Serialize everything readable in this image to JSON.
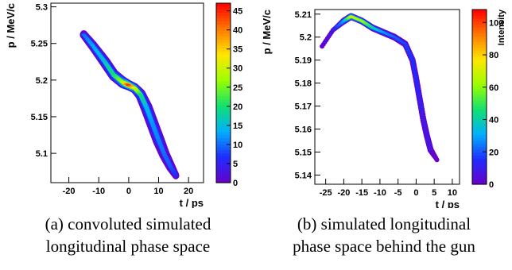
{
  "captions": {
    "a": [
      "(a) convoluted simulated",
      "longitudinal phase space"
    ],
    "b": [
      "(b) simulated longitudinal",
      "phase space behind the gun"
    ]
  },
  "chart_data": [
    {
      "type": "heatmap",
      "xlabel": "t / ps",
      "ylabel": "p / MeV/c",
      "zlabel": "",
      "xlim": [
        -26,
        25
      ],
      "ylim": [
        5.06,
        5.305
      ],
      "zlim": [
        0,
        47
      ],
      "x_ticks": [
        -20,
        -10,
        0,
        10,
        20
      ],
      "y_ticks": [
        5.1,
        5.15,
        5.2,
        5.25,
        5.3
      ],
      "z_ticks": [
        0,
        5,
        10,
        15,
        20,
        25,
        30,
        35,
        40,
        45
      ],
      "colorscale": [
        "#6a00c8",
        "#1f2bff",
        "#00b0ff",
        "#10e070",
        "#9aff00",
        "#ffe600",
        "#ff7a00",
        "#ff0000"
      ],
      "ridge": [
        {
          "t": -15,
          "p": 5.262,
          "w": 0.006,
          "i": 10
        },
        {
          "t": -12,
          "p": 5.247,
          "w": 0.007,
          "i": 13
        },
        {
          "t": -8,
          "p": 5.225,
          "w": 0.008,
          "i": 16
        },
        {
          "t": -5,
          "p": 5.207,
          "w": 0.008,
          "i": 20
        },
        {
          "t": -2,
          "p": 5.197,
          "w": 0.008,
          "i": 28
        },
        {
          "t": 0,
          "p": 5.193,
          "w": 0.007,
          "i": 45
        },
        {
          "t": 2,
          "p": 5.189,
          "w": 0.007,
          "i": 32
        },
        {
          "t": 4,
          "p": 5.18,
          "w": 0.008,
          "i": 20
        },
        {
          "t": 6,
          "p": 5.162,
          "w": 0.009,
          "i": 14
        },
        {
          "t": 8,
          "p": 5.14,
          "w": 0.009,
          "i": 12
        },
        {
          "t": 10,
          "p": 5.118,
          "w": 0.009,
          "i": 11
        },
        {
          "t": 12,
          "p": 5.098,
          "w": 0.008,
          "i": 10
        },
        {
          "t": 14,
          "p": 5.082,
          "w": 0.007,
          "i": 9
        },
        {
          "t": 16,
          "p": 5.068,
          "w": 0.005,
          "i": 6
        }
      ]
    },
    {
      "type": "heatmap",
      "xlabel": "t / ps",
      "ylabel": "p / MeV/c",
      "zlabel": "Intensity",
      "xlim": [
        -28,
        12
      ],
      "ylim": [
        5.136,
        5.212
      ],
      "zlim": [
        0,
        108
      ],
      "x_ticks": [
        -25,
        -20,
        -15,
        -10,
        -5,
        0,
        5,
        10
      ],
      "y_ticks": [
        5.14,
        5.15,
        5.16,
        5.17,
        5.18,
        5.19,
        5.2,
        5.21
      ],
      "z_ticks": [
        0,
        20,
        40,
        60,
        80,
        100
      ],
      "colorscale": [
        "#6a00c8",
        "#1f2bff",
        "#00b0ff",
        "#10e070",
        "#9aff00",
        "#ffe600",
        "#ff7a00",
        "#ff0000"
      ],
      "ridge": [
        {
          "t": -26,
          "p": 5.196,
          "w": 0.001,
          "i": 8
        },
        {
          "t": -23,
          "p": 5.203,
          "w": 0.001,
          "i": 12
        },
        {
          "t": -20,
          "p": 5.207,
          "w": 0.0015,
          "i": 30
        },
        {
          "t": -18,
          "p": 5.209,
          "w": 0.0015,
          "i": 72
        },
        {
          "t": -15,
          "p": 5.207,
          "w": 0.0015,
          "i": 62
        },
        {
          "t": -12,
          "p": 5.204,
          "w": 0.0015,
          "i": 42
        },
        {
          "t": -9,
          "p": 5.202,
          "w": 0.0015,
          "i": 28
        },
        {
          "t": -6,
          "p": 5.2,
          "w": 0.0015,
          "i": 22
        },
        {
          "t": -3,
          "p": 5.197,
          "w": 0.0015,
          "i": 18
        },
        {
          "t": -1,
          "p": 5.19,
          "w": 0.0015,
          "i": 16
        },
        {
          "t": 0,
          "p": 5.182,
          "w": 0.0015,
          "i": 15
        },
        {
          "t": 1,
          "p": 5.173,
          "w": 0.0015,
          "i": 13
        },
        {
          "t": 2,
          "p": 5.164,
          "w": 0.0015,
          "i": 12
        },
        {
          "t": 3,
          "p": 5.157,
          "w": 0.0015,
          "i": 10
        },
        {
          "t": 4,
          "p": 5.151,
          "w": 0.0015,
          "i": 9
        },
        {
          "t": 6,
          "p": 5.146,
          "w": 0.001,
          "i": 5
        }
      ]
    }
  ]
}
